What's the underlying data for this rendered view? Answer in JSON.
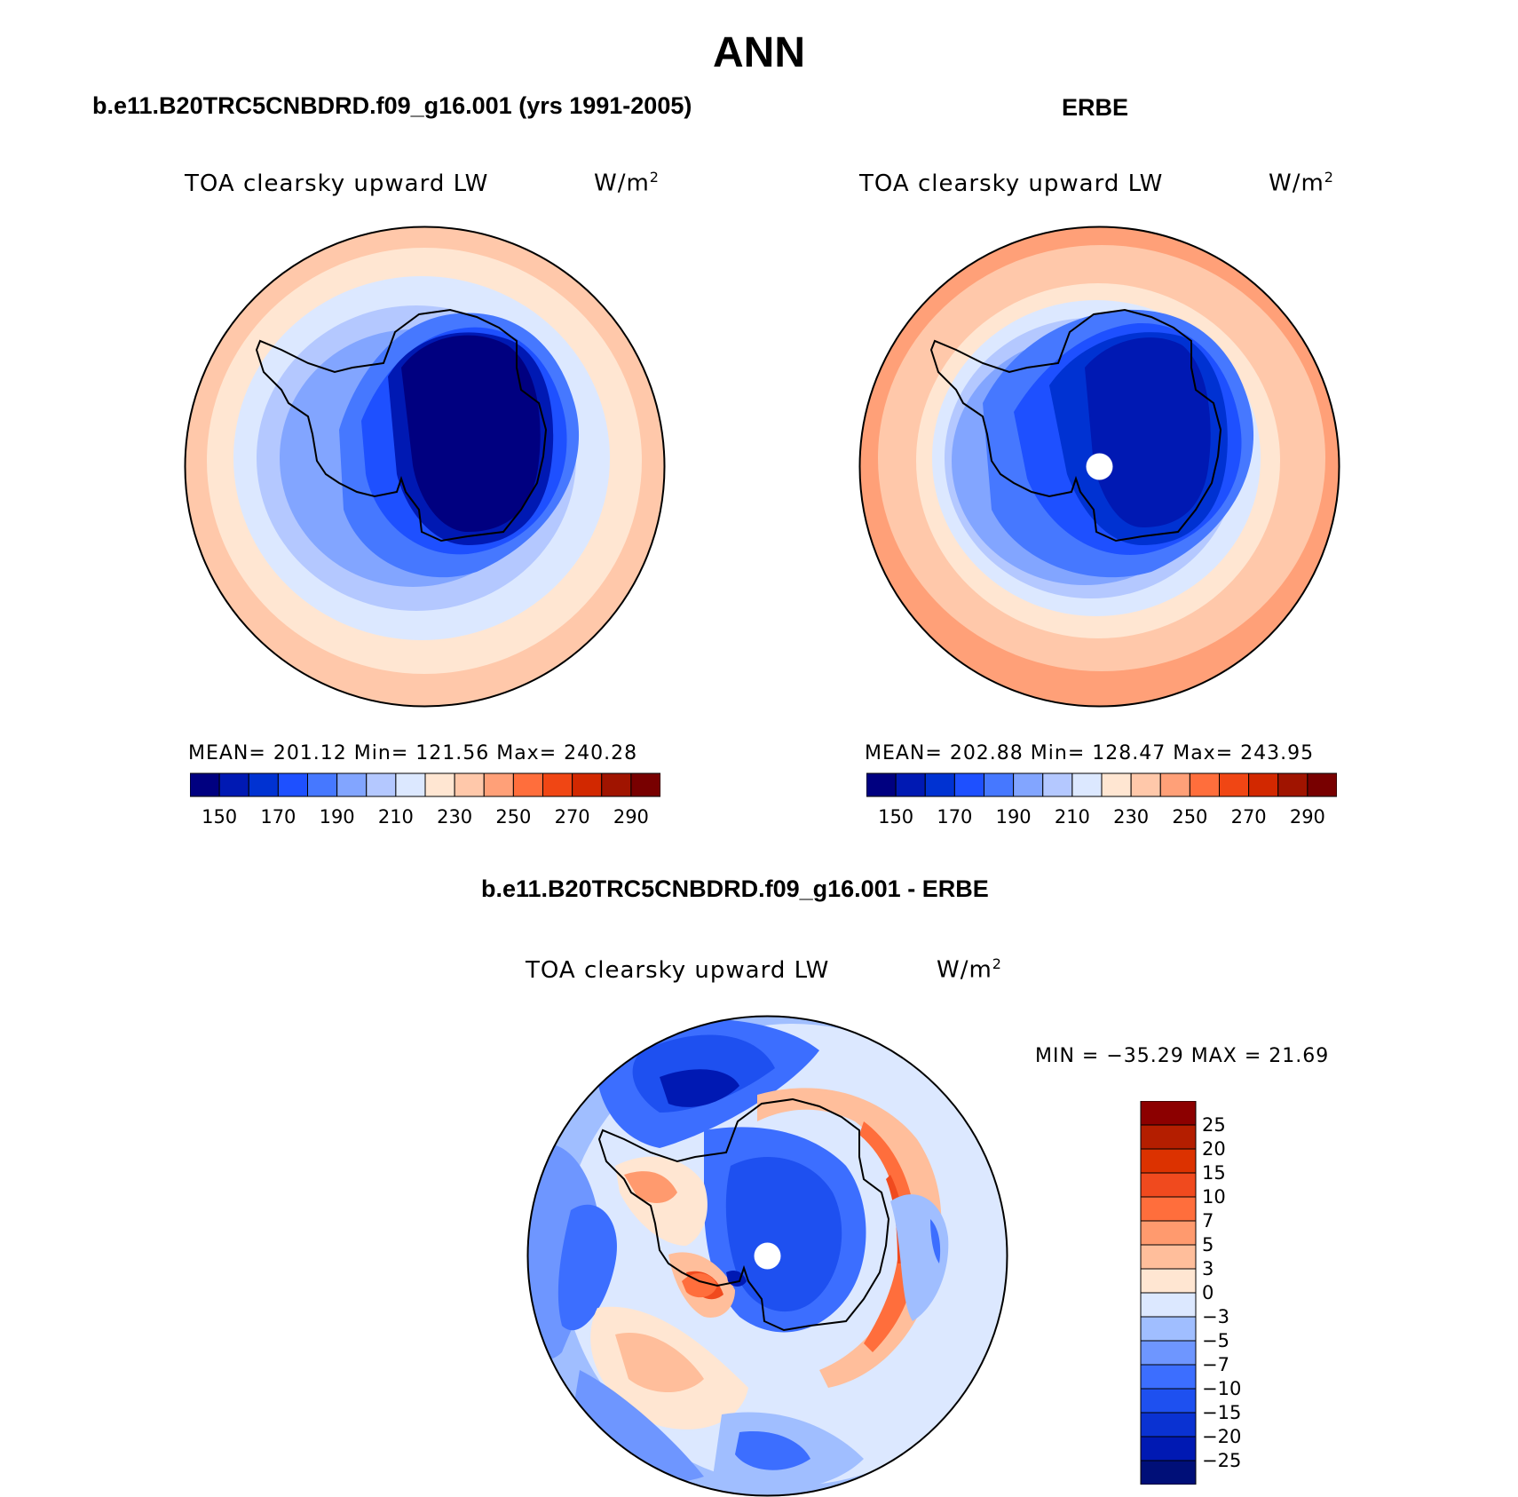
{
  "figure_title": "ANN",
  "colors": {
    "absolute_scale": [
      "#000080",
      "#0019b3",
      "#0032d2",
      "#1e50ff",
      "#4678ff",
      "#82a5ff",
      "#b4c8ff",
      "#dce8ff",
      "#ffe6d2",
      "#ffc8aa",
      "#ffa078",
      "#ff6e3c",
      "#f04614",
      "#d22800",
      "#a01400",
      "#780000"
    ],
    "difference_scale": [
      "#000f78",
      "#0019b3",
      "#0a32d2",
      "#1e50f0",
      "#3c6eff",
      "#6e96ff",
      "#a0beff",
      "#dce8ff",
      "#ffe6d2",
      "#ffbe9b",
      "#ff9a6e",
      "#ff6e3c",
      "#f04a1e",
      "#dc3200",
      "#b41e00",
      "#8c0000"
    ],
    "coastline": "#000000"
  },
  "panels": [
    {
      "id": "model",
      "title": "b.e11.B20TRC5CNBDRD.f09_g16.001 (yrs 1991-2005)",
      "variable": "TOA clearsky upward LW",
      "units_base": "W/m",
      "units_exp": "2",
      "stats": "MEAN= 201.12   Min= 121.56   Max= 240.28",
      "colorbar_ticks": [
        "150",
        "170",
        "190",
        "210",
        "230",
        "250",
        "270",
        "290"
      ],
      "pole_hole": false
    },
    {
      "id": "obs",
      "title": "ERBE",
      "variable": "TOA clearsky upward LW",
      "units_base": "W/m",
      "units_exp": "2",
      "stats": "MEAN= 202.88   Min= 128.47   Max= 243.95",
      "colorbar_ticks": [
        "150",
        "170",
        "190",
        "210",
        "230",
        "250",
        "270",
        "290"
      ],
      "pole_hole": true
    },
    {
      "id": "diff",
      "title": "b.e11.B20TRC5CNBDRD.f09_g16.001 - ERBE",
      "variable": "TOA clearsky upward LW",
      "units_base": "W/m",
      "units_exp": "2",
      "stats": "MIN = −35.29  MAX =   21.69",
      "colorbar_ticks": [
        "25",
        "20",
        "15",
        "10",
        "7",
        "5",
        "3",
        "0",
        "−3",
        "−5",
        "−7",
        "−10",
        "−15",
        "−20",
        "−25"
      ],
      "pole_hole": true
    }
  ]
}
